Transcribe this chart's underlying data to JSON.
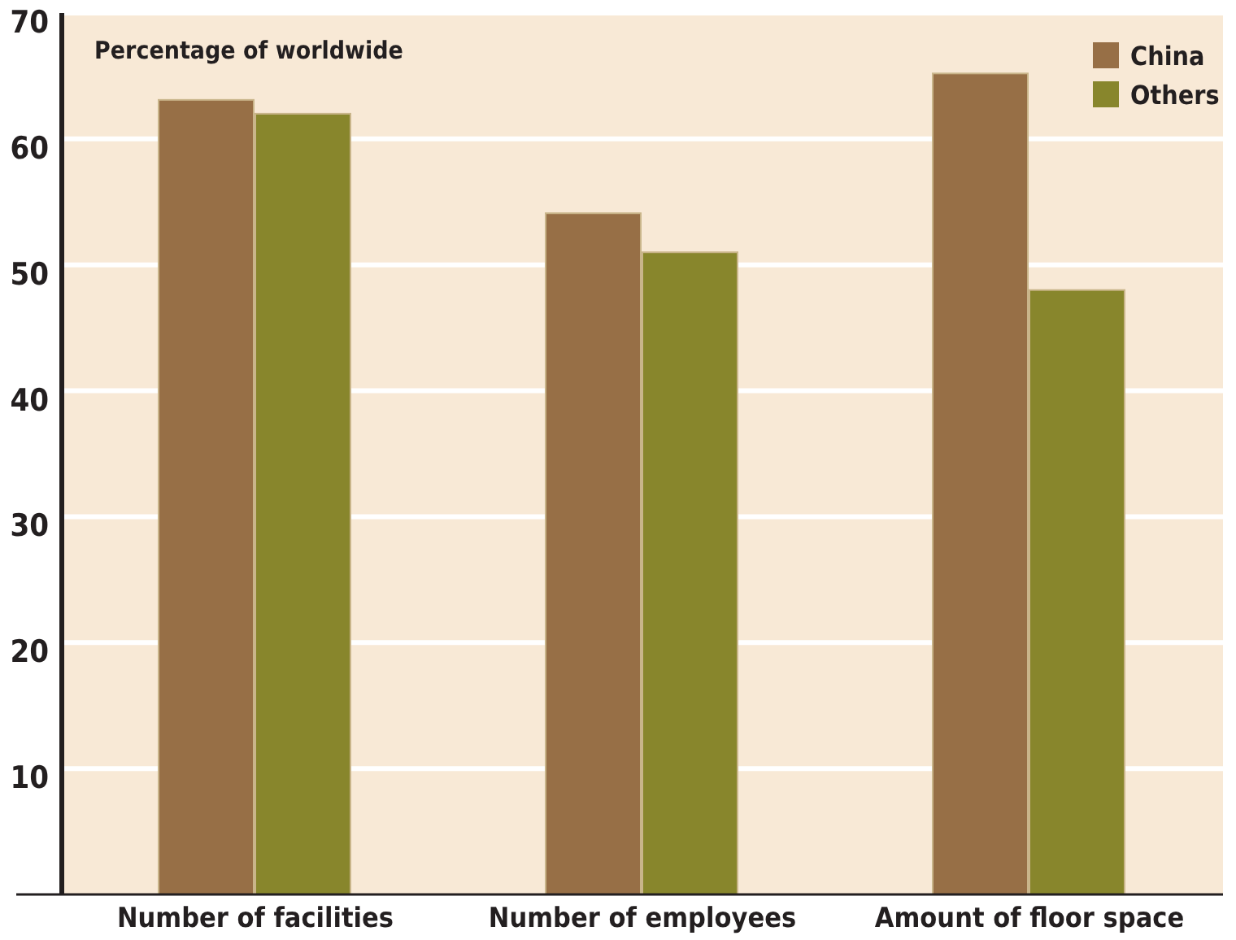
{
  "chart_data": {
    "type": "bar",
    "ylabel": "Percentage of worldwide",
    "categories": [
      "Number of facilities",
      "Number of employees",
      "Amount of floor space"
    ],
    "series": [
      {
        "name": "China",
        "color": "#976f46",
        "values": [
          63.1,
          54.1,
          65.2
        ]
      },
      {
        "name": "Others",
        "color": "#88862c",
        "values": [
          62.0,
          51.0,
          48.0
        ]
      }
    ],
    "ylim": [
      0,
      70
    ],
    "yticks": [
      10,
      20,
      30,
      40,
      50,
      60,
      70
    ],
    "grid": "y",
    "legend": "top right"
  }
}
